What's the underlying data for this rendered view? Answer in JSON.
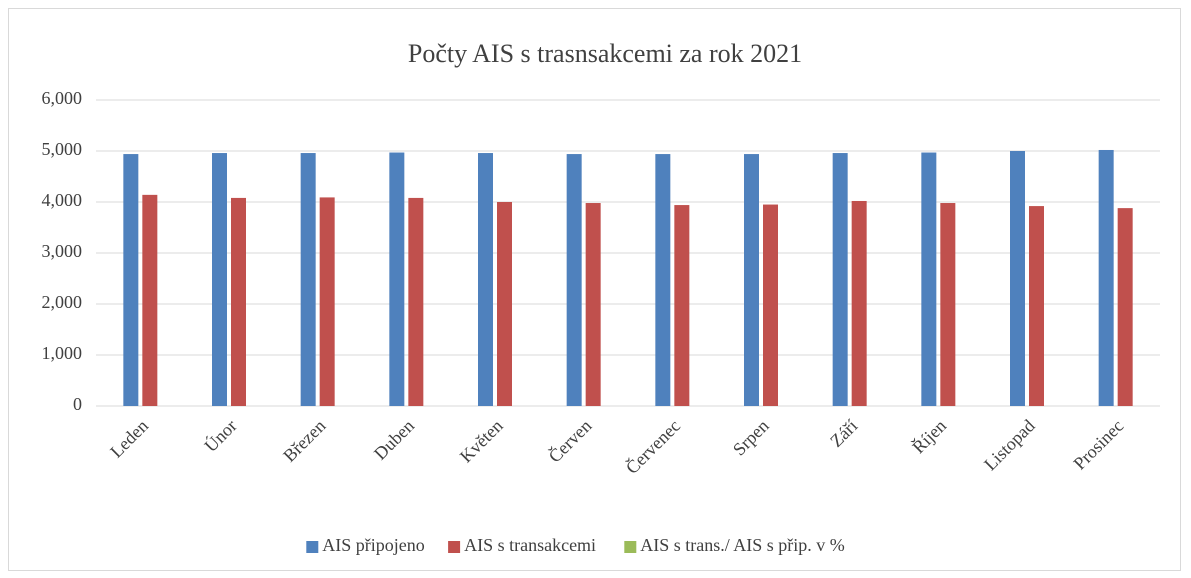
{
  "chart_data": {
    "type": "bar",
    "title": "Počty AIS s trasnsakcemi za rok 2021",
    "categories": [
      "Leden",
      "Únor",
      "Březen",
      "Duben",
      "Květen",
      "Červen",
      "Červenec",
      "Srpen",
      "Září",
      "Říjen",
      "Listopad",
      "Prosinec"
    ],
    "series": [
      {
        "name": "AIS připojeno",
        "color": "#4f81bd",
        "values": [
          4940,
          4960,
          4960,
          4970,
          4960,
          4940,
          4940,
          4940,
          4960,
          4970,
          5000,
          5020
        ]
      },
      {
        "name": "AIS s transakcemi",
        "color": "#c0504d",
        "values": [
          4140,
          4080,
          4090,
          4080,
          4000,
          3980,
          3940,
          3950,
          4020,
          3980,
          3920,
          3880
        ]
      },
      {
        "name": "AIS s trans./ AIS s přip. v %",
        "color": "#9bbb59",
        "values": [
          null,
          null,
          null,
          null,
          null,
          null,
          null,
          null,
          null,
          null,
          null,
          null
        ]
      }
    ],
    "ylim": [
      0,
      6000
    ],
    "yticks": [
      0,
      {
        "value": 1000,
        "label": "1,000"
      },
      {
        "value": 2000,
        "label": "2,000"
      },
      {
        "value": 3000,
        "label": "3,000"
      },
      {
        "value": 4000,
        "label": "4,000"
      },
      {
        "value": 5000,
        "label": "5,000"
      },
      {
        "value": 6000,
        "label": "6,000"
      }
    ],
    "grid": true,
    "legend": "bottom"
  }
}
